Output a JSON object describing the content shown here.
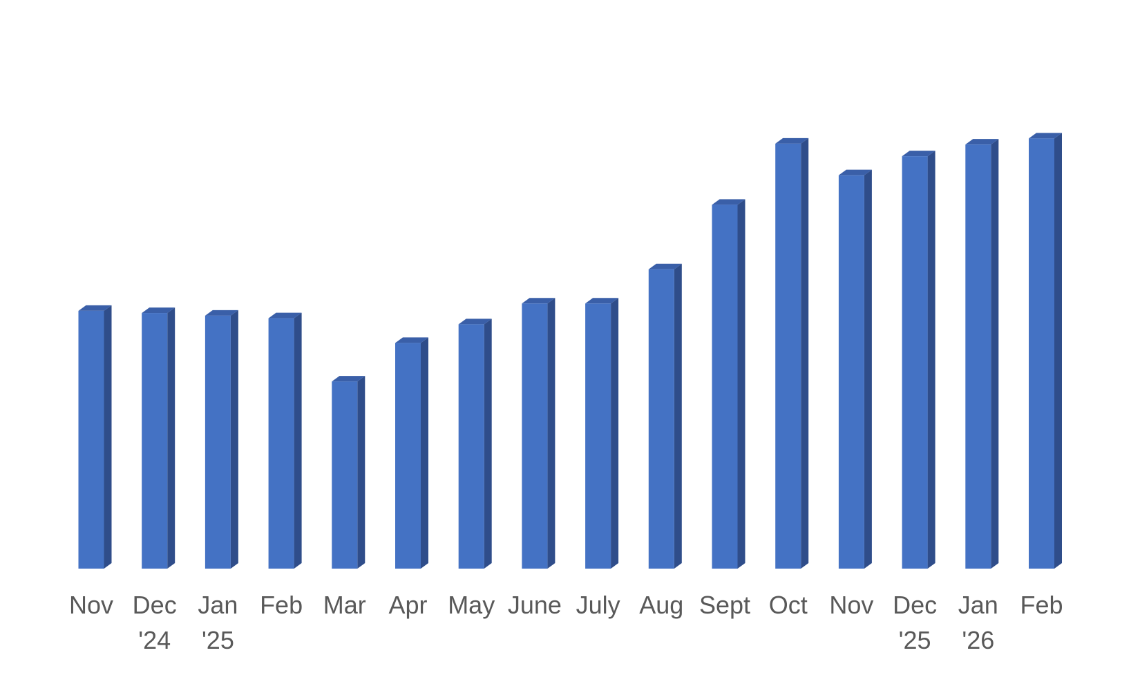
{
  "chart_data": {
    "type": "bar",
    "style": "3d-column",
    "title": "",
    "xlabel": "",
    "ylabel": "",
    "ylim": [
      0,
      100
    ],
    "grid": false,
    "legend": "none",
    "colors": {
      "front": "#4472C4",
      "side": "#2F4D8A",
      "top": "#3A5FA8",
      "label": "#595959",
      "background": "#FFFFFF"
    },
    "categories": [
      [
        "Nov",
        ""
      ],
      [
        "Dec",
        "'24"
      ],
      [
        "Jan",
        "'25"
      ],
      [
        "Feb",
        ""
      ],
      [
        "Mar",
        ""
      ],
      [
        "Apr",
        ""
      ],
      [
        "May",
        ""
      ],
      [
        "June",
        ""
      ],
      [
        "July",
        ""
      ],
      [
        "Aug",
        ""
      ],
      [
        "Sept",
        ""
      ],
      [
        "Oct",
        ""
      ],
      [
        "Nov",
        ""
      ],
      [
        "Dec",
        "'25"
      ],
      [
        "Jan",
        "'26"
      ],
      [
        "Feb",
        ""
      ]
    ],
    "values": [
      59.5,
      59,
      58.4,
      57.8,
      43.2,
      52.1,
      56.4,
      61.2,
      61.2,
      69.1,
      84,
      98.1,
      90.8,
      95.2,
      97.9,
      99.3
    ]
  }
}
